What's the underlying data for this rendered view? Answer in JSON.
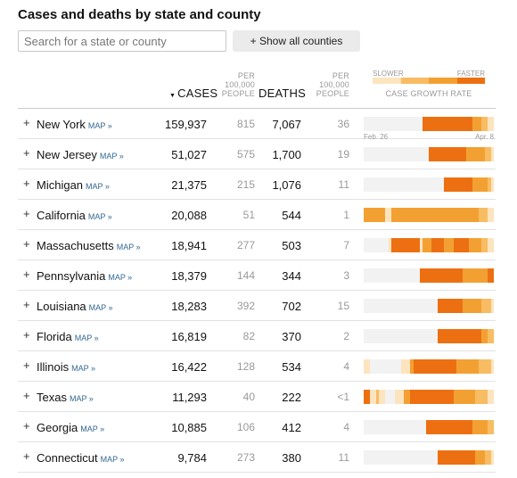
{
  "title": "Cases and deaths by state and county",
  "search": {
    "placeholder": "Search for a state or county"
  },
  "show_all_label": "+ Show all counties",
  "headers": {
    "cases": "CASES",
    "per_100k_cases": "PER 100,000 PEOPLE",
    "deaths": "DEATHS",
    "per_100k_deaths": "PER 100,000 PEOPLE",
    "legend_slower": "SLOWER",
    "legend_faster": "FASTER",
    "legend_title": "CASE GROWTH RATE"
  },
  "sort_indicator": "▼",
  "plus_label": "+",
  "map_label": "MAP »",
  "date_start": "Feb. 26",
  "date_end": "Apr. 8",
  "colors": {
    "level0": "#f2f2f2",
    "level1": "#fce4bf",
    "level2": "#f8bc62",
    "level3": "#f3a033",
    "level4": "#ec7012",
    "accent_link": "#326891"
  },
  "growth_days_total": 42,
  "rows": [
    {
      "state": "New York",
      "cases": "159,937",
      "per_100k_cases": "815",
      "deaths": "7,067",
      "per_100k_deaths": "36",
      "growth": [
        0,
        0,
        0,
        0,
        0,
        0,
        0,
        0,
        0,
        0,
        0,
        0,
        0,
        0,
        0,
        0,
        0,
        0,
        0,
        4,
        4,
        4,
        4,
        4,
        4,
        4,
        4,
        4,
        4,
        4,
        4,
        4,
        4,
        4,
        4,
        3,
        3,
        3,
        2,
        2,
        1,
        1
      ]
    },
    {
      "state": "New Jersey",
      "cases": "51,027",
      "per_100k_cases": "575",
      "deaths": "1,700",
      "per_100k_deaths": "19",
      "growth": [
        0,
        0,
        0,
        0,
        0,
        0,
        0,
        0,
        0,
        0,
        0,
        0,
        0,
        0,
        0,
        0,
        0,
        0,
        0,
        0,
        0,
        4,
        4,
        4,
        4,
        4,
        4,
        4,
        4,
        4,
        4,
        4,
        4,
        3,
        3,
        3,
        3,
        3,
        3,
        2,
        2,
        1
      ]
    },
    {
      "state": "Michigan",
      "cases": "21,375",
      "per_100k_cases": "215",
      "deaths": "1,076",
      "per_100k_deaths": "11",
      "growth": [
        0,
        0,
        0,
        0,
        0,
        0,
        0,
        0,
        0,
        0,
        0,
        0,
        0,
        0,
        0,
        0,
        0,
        0,
        0,
        0,
        0,
        0,
        0,
        0,
        0,
        0,
        4,
        4,
        4,
        4,
        4,
        4,
        4,
        4,
        4,
        3,
        3,
        3,
        3,
        3,
        2,
        1
      ]
    },
    {
      "state": "California",
      "cases": "20,088",
      "per_100k_cases": "51",
      "deaths": "544",
      "per_100k_deaths": "1",
      "growth": [
        3,
        3,
        3,
        3,
        3,
        3,
        3,
        1,
        1,
        3,
        3,
        3,
        3,
        3,
        3,
        3,
        3,
        3,
        3,
        3,
        3,
        3,
        3,
        3,
        3,
        3,
        3,
        3,
        3,
        3,
        3,
        3,
        3,
        3,
        3,
        3,
        3,
        2,
        2,
        2,
        1,
        1
      ]
    },
    {
      "state": "Massachusetts",
      "cases": "18,941",
      "per_100k_cases": "277",
      "deaths": "503",
      "per_100k_deaths": "7",
      "growth": [
        0,
        0,
        0,
        0,
        0,
        0,
        0,
        0,
        1,
        4,
        4,
        4,
        4,
        4,
        4,
        4,
        4,
        4,
        1,
        3,
        3,
        3,
        4,
        4,
        4,
        4,
        3,
        3,
        3,
        4,
        4,
        4,
        4,
        4,
        3,
        3,
        3,
        3,
        2,
        2,
        1,
        1
      ]
    },
    {
      "state": "Pennsylvania",
      "cases": "18,379",
      "per_100k_cases": "144",
      "deaths": "344",
      "per_100k_deaths": "3",
      "growth": [
        0,
        0,
        0,
        0,
        0,
        0,
        0,
        0,
        0,
        0,
        0,
        0,
        0,
        0,
        0,
        0,
        0,
        0,
        4,
        4,
        4,
        4,
        4,
        4,
        4,
        4,
        4,
        4,
        4,
        4,
        4,
        4,
        3,
        3,
        3,
        3,
        3,
        3,
        3,
        3,
        4,
        4
      ]
    },
    {
      "state": "Louisiana",
      "cases": "18,283",
      "per_100k_cases": "392",
      "deaths": "702",
      "per_100k_deaths": "15",
      "growth": [
        0,
        0,
        0,
        0,
        0,
        0,
        0,
        0,
        0,
        0,
        0,
        0,
        0,
        0,
        0,
        0,
        0,
        0,
        0,
        0,
        0,
        0,
        0,
        0,
        4,
        4,
        4,
        4,
        4,
        4,
        4,
        4,
        3,
        3,
        3,
        3,
        3,
        3,
        2,
        2,
        2,
        1
      ]
    },
    {
      "state": "Florida",
      "cases": "16,819",
      "per_100k_cases": "82",
      "deaths": "370",
      "per_100k_deaths": "2",
      "growth": [
        0,
        0,
        0,
        0,
        0,
        0,
        0,
        0,
        0,
        0,
        0,
        0,
        0,
        0,
        0,
        0,
        0,
        0,
        0,
        0,
        0,
        0,
        0,
        0,
        4,
        4,
        4,
        4,
        4,
        4,
        4,
        4,
        4,
        4,
        4,
        4,
        4,
        4,
        3,
        3,
        2,
        2
      ]
    },
    {
      "state": "Illinois",
      "cases": "16,422",
      "per_100k_cases": "128",
      "deaths": "534",
      "per_100k_deaths": "4",
      "growth": [
        1,
        1,
        0,
        0,
        0,
        0,
        0,
        0,
        0,
        0,
        0,
        0,
        1,
        1,
        1,
        3,
        4,
        4,
        4,
        4,
        4,
        4,
        4,
        4,
        4,
        4,
        4,
        4,
        4,
        4,
        3,
        3,
        3,
        3,
        3,
        3,
        3,
        2,
        2,
        2,
        2,
        1
      ]
    },
    {
      "state": "Texas",
      "cases": "11,293",
      "per_100k_cases": "40",
      "deaths": "222",
      "per_100k_deaths": "<1",
      "growth": [
        4,
        4,
        1,
        1,
        2,
        1,
        1,
        0,
        0,
        0,
        1,
        1,
        1,
        3,
        3,
        4,
        4,
        4,
        4,
        4,
        4,
        4,
        4,
        4,
        4,
        4,
        4,
        4,
        4,
        3,
        3,
        3,
        3,
        3,
        3,
        3,
        2,
        2,
        2,
        2,
        1,
        1
      ]
    },
    {
      "state": "Georgia",
      "cases": "10,885",
      "per_100k_cases": "106",
      "deaths": "412",
      "per_100k_deaths": "4",
      "growth": [
        0,
        0,
        0,
        0,
        0,
        0,
        0,
        0,
        0,
        0,
        0,
        0,
        0,
        0,
        0,
        0,
        0,
        0,
        0,
        0,
        4,
        4,
        4,
        4,
        4,
        4,
        4,
        4,
        4,
        4,
        4,
        4,
        4,
        4,
        4,
        3,
        3,
        3,
        3,
        3,
        2,
        2
      ]
    },
    {
      "state": "Connecticut",
      "cases": "9,784",
      "per_100k_cases": "273",
      "deaths": "380",
      "per_100k_deaths": "11",
      "growth": [
        0,
        0,
        0,
        0,
        0,
        0,
        0,
        0,
        0,
        0,
        0,
        0,
        0,
        0,
        0,
        0,
        0,
        0,
        0,
        0,
        0,
        0,
        0,
        0,
        4,
        4,
        4,
        4,
        4,
        4,
        4,
        4,
        4,
        4,
        4,
        4,
        3,
        3,
        3,
        2,
        2,
        1
      ]
    }
  ]
}
